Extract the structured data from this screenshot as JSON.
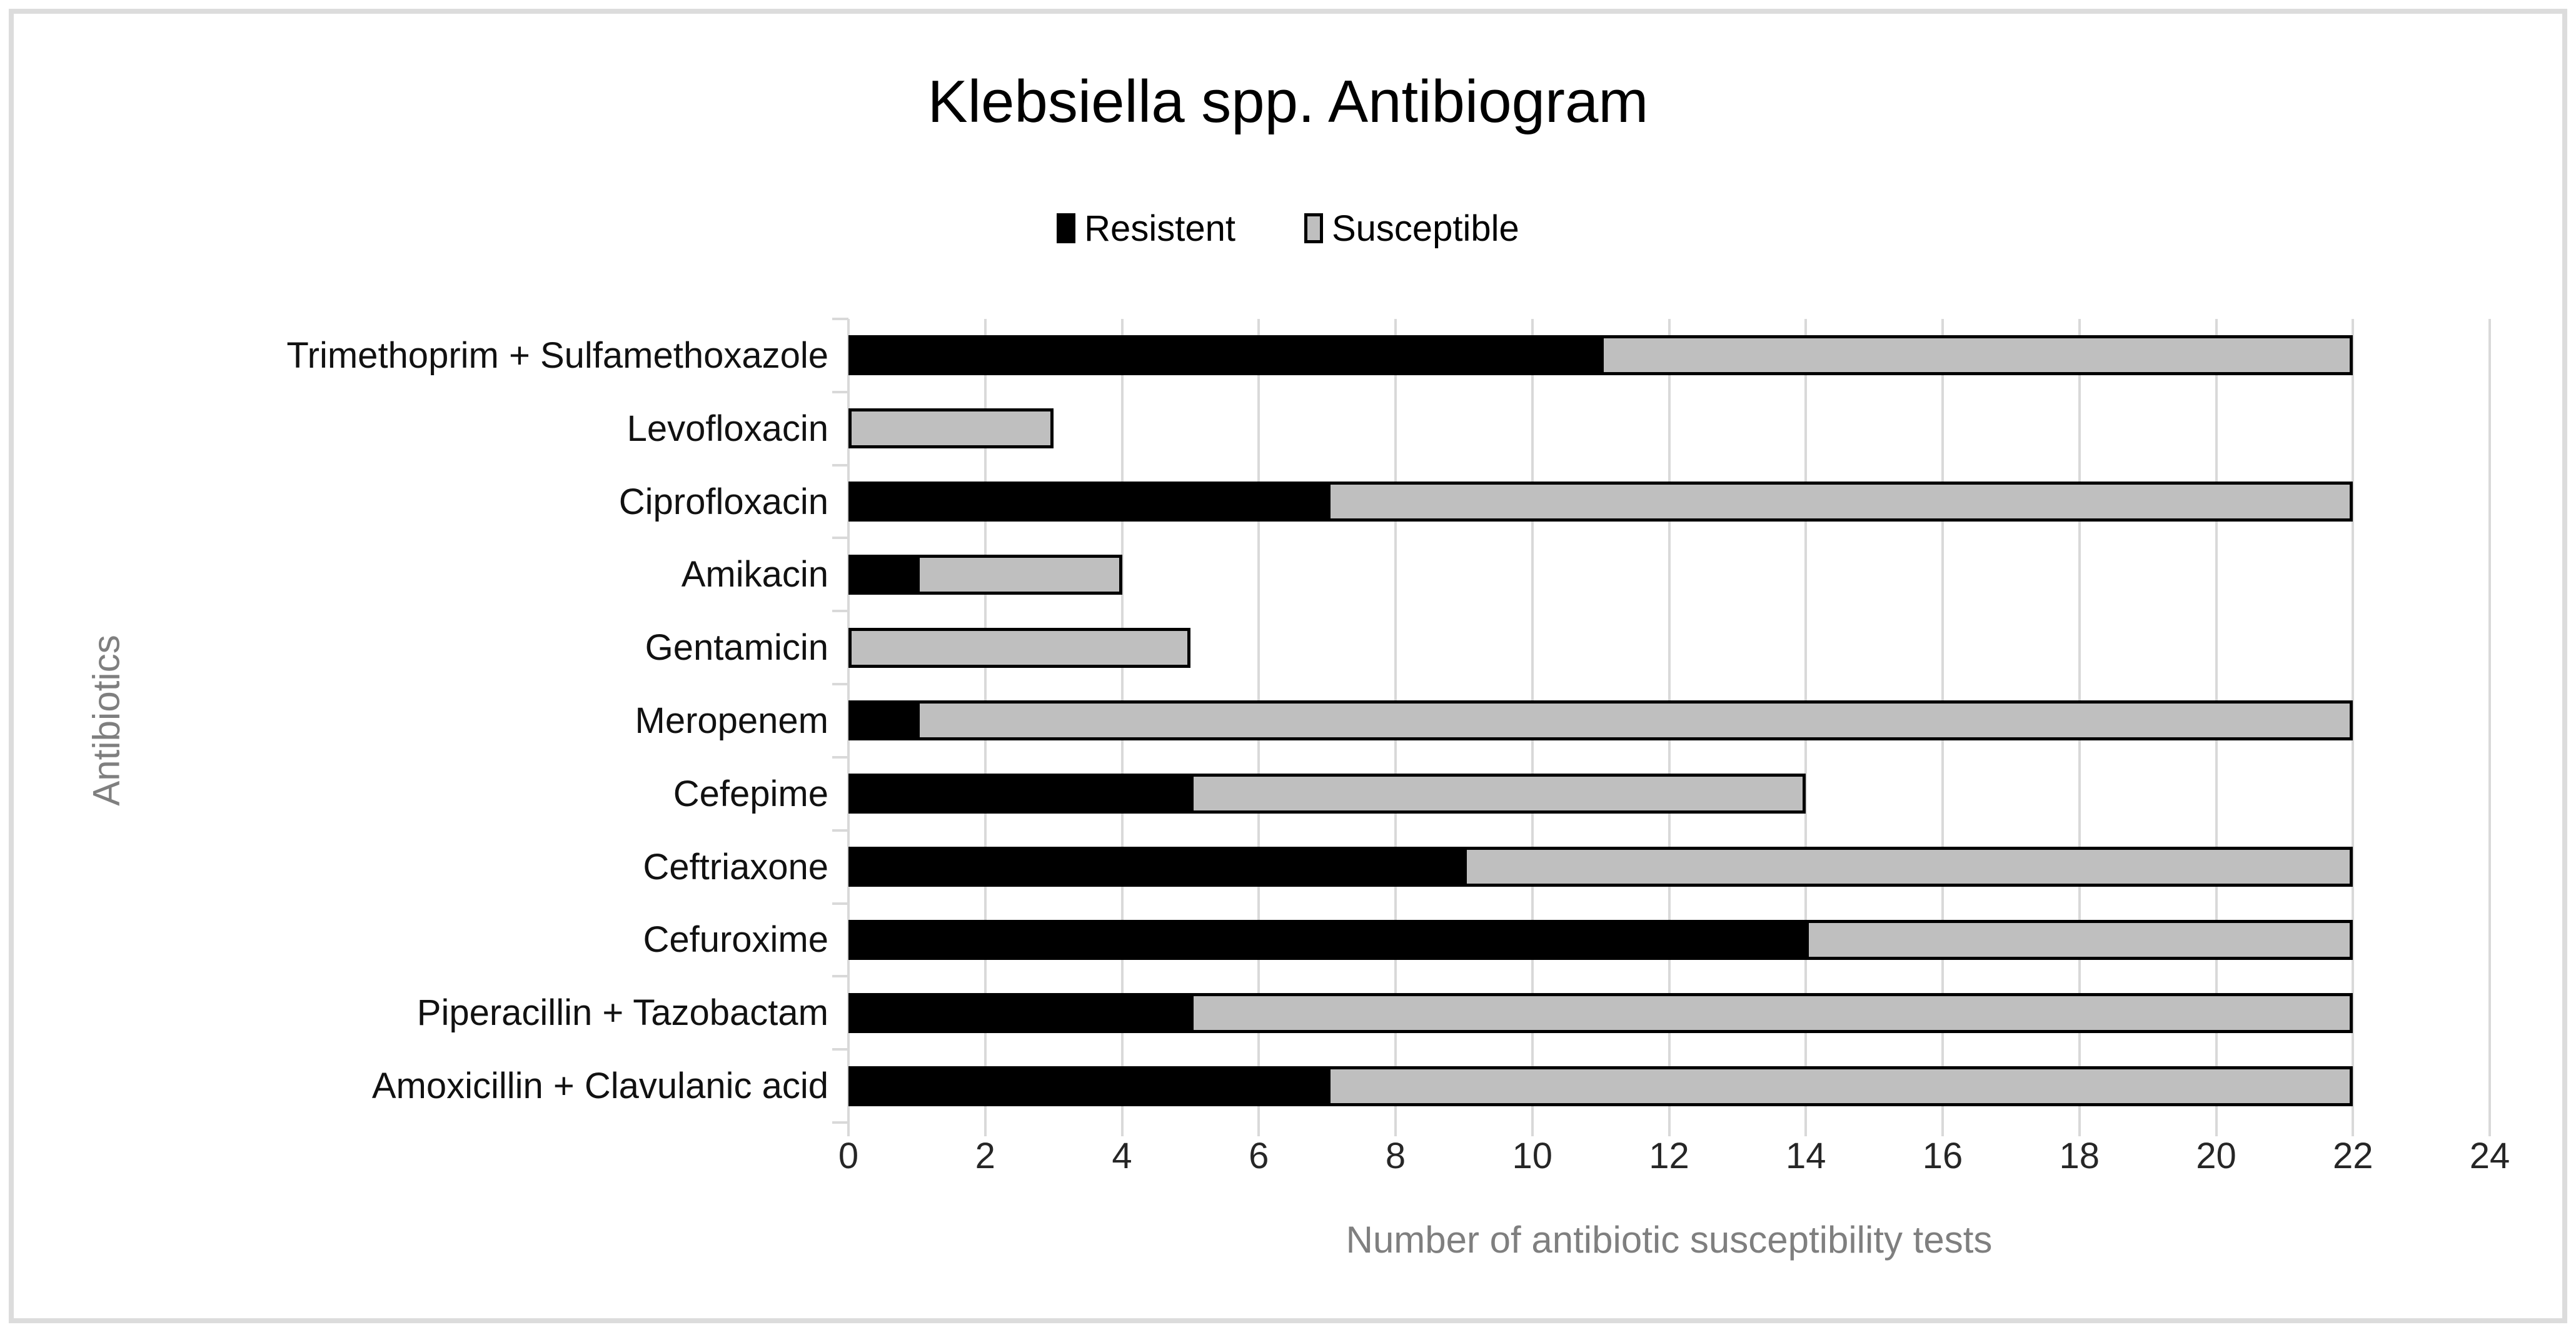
{
  "chart_data": {
    "type": "bar",
    "orientation": "horizontal",
    "stacked": true,
    "title": "Klebsiella spp. Antibiogram",
    "categories": [
      "Trimethoprim + Sulfamethoxazole",
      "Levofloxacin",
      "Ciprofloxacin",
      "Amikacin",
      "Gentamicin",
      "Meropenem",
      "Cefepime",
      "Ceftriaxone",
      "Cefuroxime",
      "Piperacillin + Tazobactam",
      "Amoxicillin + Clavulanic acid"
    ],
    "series": [
      {
        "name": "Resistent",
        "color": "#000000",
        "values": [
          11,
          0,
          7,
          1,
          0,
          1,
          5,
          9,
          14,
          5,
          7
        ]
      },
      {
        "name": "Susceptible",
        "color": "#bfbfbf",
        "values": [
          11,
          3,
          15,
          3,
          5,
          21,
          9,
          13,
          8,
          17,
          15
        ]
      }
    ],
    "totals": [
      22,
      3,
      22,
      4,
      5,
      22,
      14,
      22,
      22,
      22,
      22
    ],
    "xlabel": "Number of antibiotic susceptibility tests",
    "ylabel": "Antibiotics",
    "xlim": [
      0,
      24
    ],
    "xticks": [
      0,
      2,
      4,
      6,
      8,
      10,
      12,
      14,
      16,
      18,
      20,
      22,
      24
    ],
    "grid": "vertical-every-2",
    "legend_position": "top-center"
  },
  "palette": {
    "resistant_fill": "#000000",
    "susceptible_fill": "#bfbfbf",
    "bar_border": "#000000",
    "gridline": "#d9d9d9",
    "frame_border": "#dcdcdc",
    "axis_title_color": "#7f7f7f",
    "tick_label_color": "#262626",
    "background": "#ffffff"
  }
}
